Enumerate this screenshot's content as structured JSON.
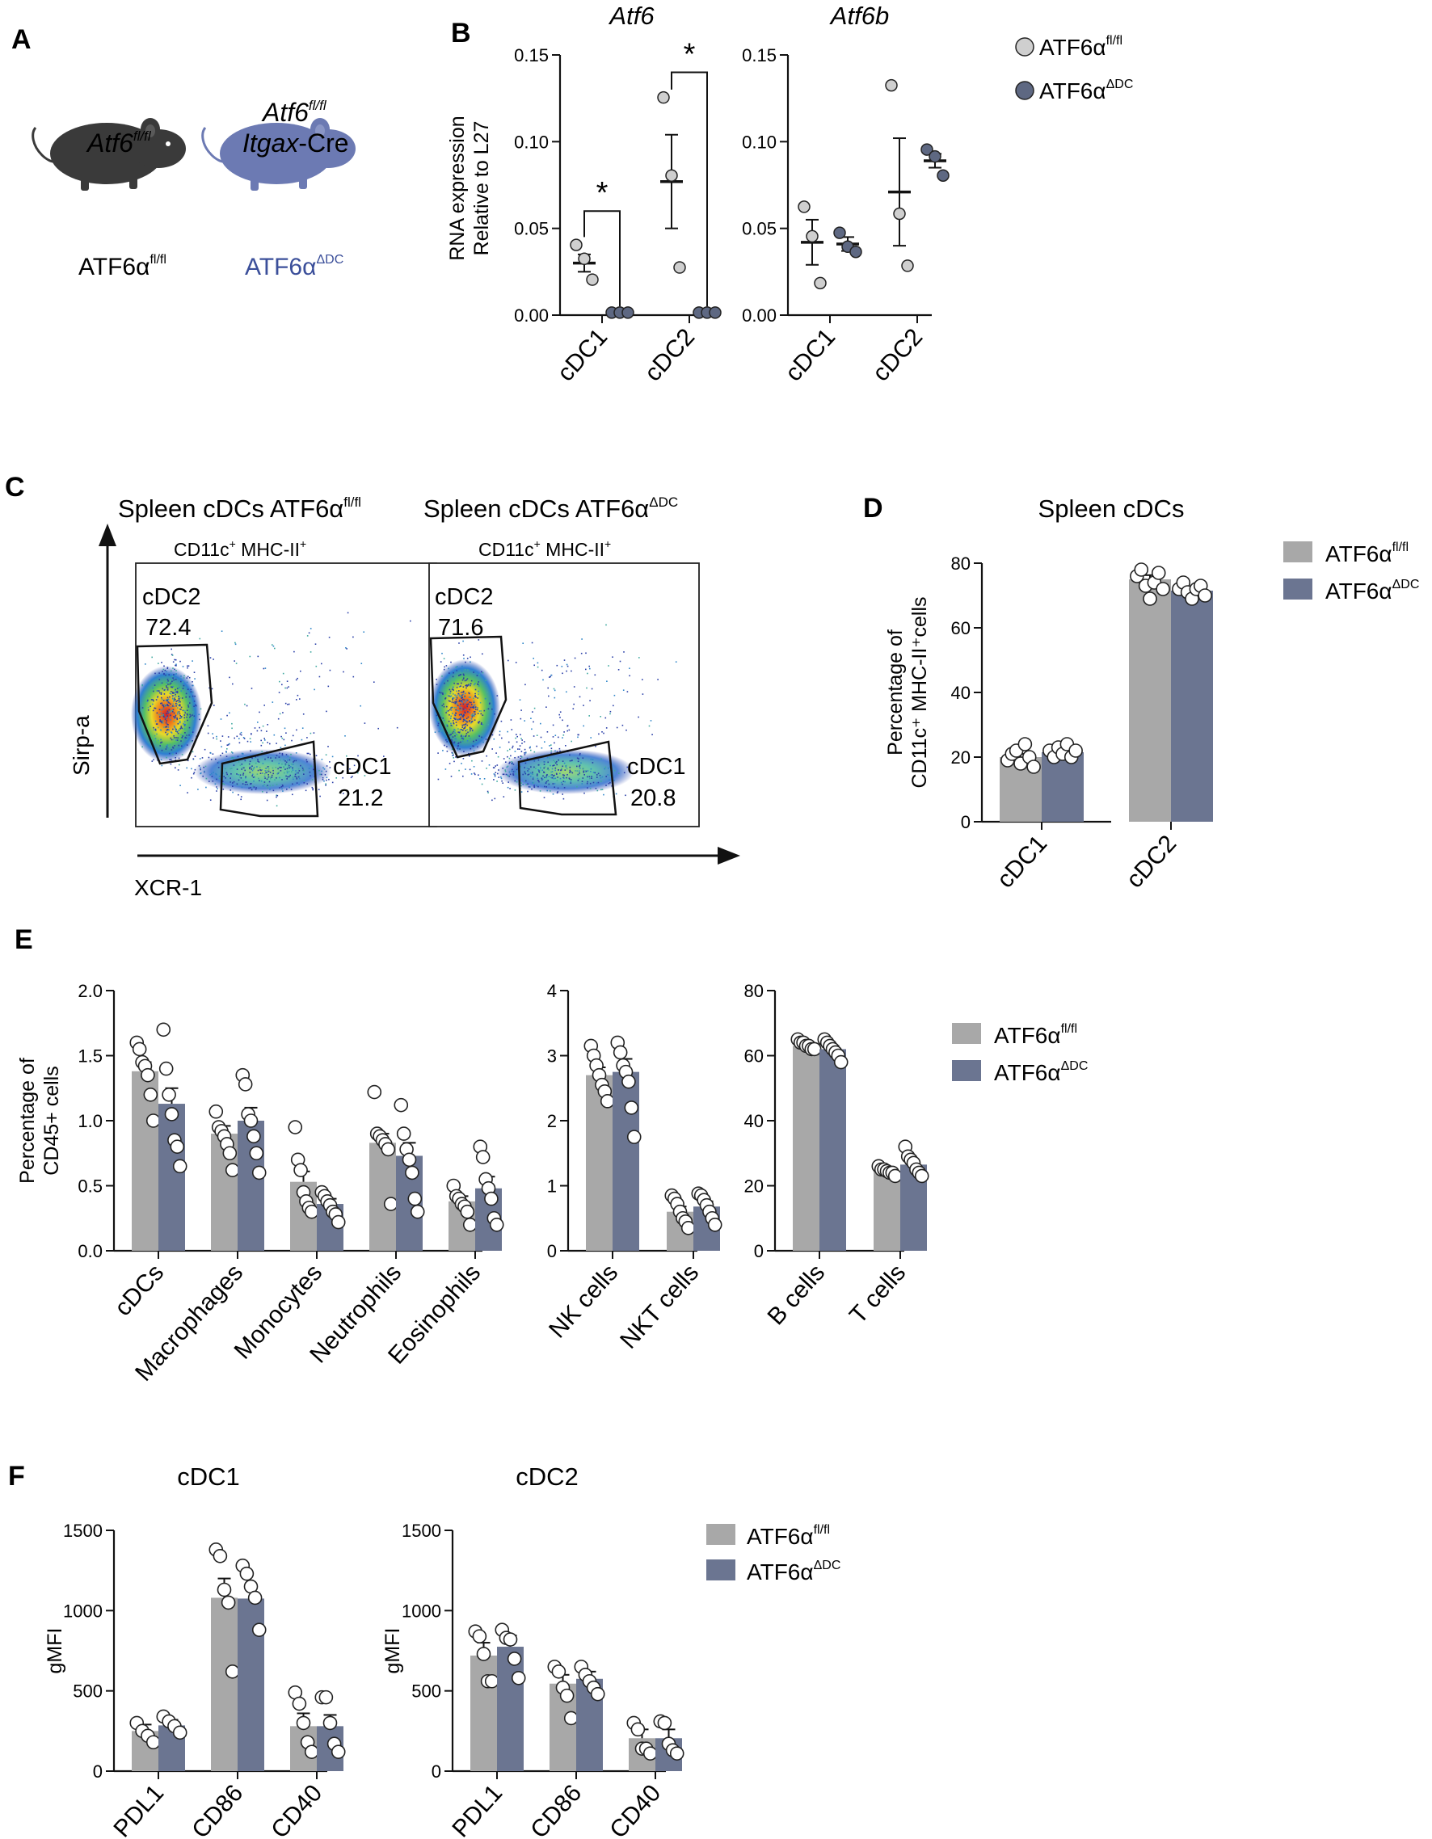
{
  "colors": {
    "fl": "#a8a8a8",
    "dc": "#6b7591",
    "fl_dot": "#cfcfcf",
    "dc_dot": "#5e6882",
    "dc_text": "#3b4f9a",
    "mouse_fl": "#3a3a3a",
    "mouse_dc": "#6c7ab3"
  },
  "icons": [
    "mouse-icon"
  ],
  "legend": {
    "fl_base": "ATF6α",
    "fl_sup": "fl/fl",
    "dc_base": "ATF6α",
    "dc_sup": "ΔDC"
  },
  "panelA": {
    "letter": "A",
    "mouse1": {
      "gene": "Atf6",
      "sup": "fl/fl",
      "label": "ATF6α",
      "label_sup": "fl/fl"
    },
    "mouse2": {
      "gene": "Atf6",
      "sup": "fl/fl",
      "line2_italic": "Itgax",
      "line2_rest": "-Cre",
      "label": "ATF6α",
      "label_sup": "ΔDC"
    }
  },
  "panelC": {
    "letter": "C",
    "yaxis": "Sirp-a",
    "xaxis": "XCR-1",
    "plots": [
      {
        "title": "Spleen cDCs ATF6α",
        "title_sup": "fl/fl",
        "subtitle": "CD11c",
        "subtitle_sup": "+",
        "subtitle_mid": " MHC-II",
        "subtitle_sup2": "+",
        "gate1_label": "cDC2",
        "gate1_value": "72.4",
        "gate2_label": "cDC1",
        "gate2_value": "21.2"
      },
      {
        "title": "Spleen cDCs ATF6α",
        "title_sup": "ΔDC",
        "subtitle": "CD11c",
        "subtitle_sup": "+",
        "subtitle_mid": " MHC-II",
        "subtitle_sup2": "+",
        "gate1_label": "cDC2",
        "gate1_value": "71.6",
        "gate2_label": "cDC1",
        "gate2_value": "20.8"
      }
    ]
  },
  "chart_data": [
    {
      "id": "B1",
      "panel_letter": "B",
      "type": "scatter",
      "title": "Atf6",
      "ylabel_line1": "RNA expression",
      "ylabel_line2": "Relative to L27",
      "categories": [
        "cDC1",
        "cDC2"
      ],
      "ylim": [
        0,
        0.15
      ],
      "yticks": [
        0,
        0.05,
        0.1,
        0.15
      ],
      "ytick_labels": [
        "0.00",
        "0.05",
        "0.10",
        "0.15"
      ],
      "series": [
        {
          "name": "ATF6α fl/fl",
          "mean": [
            0.03,
            0.077
          ],
          "err": [
            0.005,
            0.027
          ],
          "points": [
            [
              0.04,
              0.032,
              0.02
            ],
            [
              0.125,
              0.08,
              0.027
            ]
          ]
        },
        {
          "name": "ATF6α ΔDC",
          "mean": [
            0.001,
            0.001
          ],
          "err": [
            0.0,
            0.0
          ],
          "points": [
            [
              0.001,
              0.001,
              0.001
            ],
            [
              0.001,
              0.001,
              0.001
            ]
          ]
        }
      ],
      "significance": [
        "*",
        "*"
      ]
    },
    {
      "id": "B2",
      "type": "scatter",
      "title": "Atf6b",
      "categories": [
        "cDC1",
        "cDC2"
      ],
      "ylim": [
        0,
        0.15
      ],
      "yticks": [
        0,
        0.05,
        0.1,
        0.15
      ],
      "ytick_labels": [
        "0.00",
        "0.05",
        "0.10",
        "0.15"
      ],
      "series": [
        {
          "name": "ATF6α fl/fl",
          "mean": [
            0.042,
            0.071
          ],
          "err": [
            0.013,
            0.031
          ],
          "points": [
            [
              0.062,
              0.045,
              0.018
            ],
            [
              0.132,
              0.058,
              0.028
            ]
          ]
        },
        {
          "name": "ATF6α ΔDC",
          "mean": [
            0.041,
            0.089
          ],
          "err": [
            0.004,
            0.004
          ],
          "points": [
            [
              0.047,
              0.039,
              0.036
            ],
            [
              0.095,
              0.091,
              0.08
            ]
          ]
        }
      ]
    },
    {
      "id": "D",
      "panel_letter": "D",
      "type": "bar",
      "title": "Spleen cDCs",
      "ylabel_line1": "Percentage of",
      "ylabel_line2": "CD11c⁺ MHC-II⁺cells",
      "categories": [
        "cDC1",
        "cDC2"
      ],
      "ylim": [
        0,
        80
      ],
      "yticks": [
        0,
        20,
        40,
        60,
        80
      ],
      "ytick_labels": [
        "0",
        "20",
        "40",
        "60",
        "80"
      ],
      "series": [
        {
          "name": "ATF6α fl/fl",
          "values": [
            20,
            75
          ],
          "err": [
            1,
            1.3
          ],
          "points": [
            [
              19,
              21,
              22,
              18,
              24,
              20,
              17
            ],
            [
              76,
              78,
              73,
              69,
              74,
              77,
              72
            ]
          ]
        },
        {
          "name": "ATF6α ΔDC",
          "values": [
            21.5,
            71.5
          ],
          "err": [
            0.5,
            0.6
          ],
          "points": [
            [
              22,
              20,
              23,
              21,
              24,
              20,
              22
            ],
            [
              72,
              74,
              71,
              69,
              72,
              73,
              70
            ]
          ]
        }
      ]
    },
    {
      "id": "E1",
      "panel_letter": "E",
      "type": "bar",
      "ylabel_line1": "Percentage of",
      "ylabel_line2": "CD45+ cells",
      "categories": [
        "cDCs",
        "Macrophages",
        "Monocytes",
        "Neutrophils",
        "Eosinophils"
      ],
      "ylim": [
        0,
        2.0
      ],
      "yticks": [
        0,
        0.5,
        1.0,
        1.5,
        2.0
      ],
      "ytick_labels": [
        "0.0",
        "0.5",
        "1.0",
        "1.5",
        "2.0"
      ],
      "series": [
        {
          "name": "ATF6α fl/fl",
          "values": [
            1.38,
            0.9,
            0.53,
            0.83,
            0.38
          ],
          "err": [
            0.07,
            0.06,
            0.08,
            0.07,
            0.04
          ],
          "points": [
            [
              1.6,
              1.55,
              1.45,
              1.42,
              1.35,
              1.2,
              1.0
            ],
            [
              1.07,
              0.95,
              0.92,
              0.88,
              0.82,
              0.75,
              0.62
            ],
            [
              0.95,
              0.7,
              0.62,
              0.45,
              0.38,
              0.33,
              0.3
            ],
            [
              1.22,
              0.9,
              0.88,
              0.85,
              0.82,
              0.78,
              0.36
            ],
            [
              0.5,
              0.42,
              0.4,
              0.36,
              0.34,
              0.3,
              0.2
            ]
          ]
        },
        {
          "name": "ATF6α ΔDC",
          "values": [
            1.13,
            1.0,
            0.36,
            0.73,
            0.48
          ],
          "err": [
            0.12,
            0.1,
            0.04,
            0.1,
            0.09
          ],
          "points": [
            [
              1.7,
              1.4,
              1.2,
              1.05,
              0.85,
              0.8,
              0.65
            ],
            [
              1.35,
              1.28,
              1.05,
              1.0,
              0.88,
              0.75,
              0.6
            ],
            [
              0.45,
              0.42,
              0.38,
              0.35,
              0.3,
              0.28,
              0.22
            ],
            [
              1.12,
              0.9,
              0.78,
              0.7,
              0.6,
              0.4,
              0.3
            ],
            [
              0.8,
              0.72,
              0.55,
              0.48,
              0.4,
              0.25,
              0.2
            ]
          ]
        }
      ]
    },
    {
      "id": "E2",
      "type": "bar",
      "categories": [
        "NK cells",
        "NKT cells"
      ],
      "ylim": [
        0,
        4
      ],
      "yticks": [
        0,
        1,
        2,
        3,
        4
      ],
      "ytick_labels": [
        "0",
        "1",
        "2",
        "3",
        "4"
      ],
      "series": [
        {
          "name": "ATF6α fl/fl",
          "values": [
            2.7,
            0.6
          ],
          "err": [
            0.12,
            0.08
          ],
          "points": [
            [
              3.15,
              3.0,
              2.85,
              2.7,
              2.55,
              2.45,
              2.3
            ],
            [
              0.85,
              0.8,
              0.72,
              0.6,
              0.5,
              0.45,
              0.35
            ]
          ]
        },
        {
          "name": "ATF6α ΔDC",
          "values": [
            2.75,
            0.68
          ],
          "err": [
            0.2,
            0.08
          ],
          "points": [
            [
              3.2,
              3.05,
              2.85,
              2.75,
              2.6,
              2.2,
              1.75
            ],
            [
              0.88,
              0.85,
              0.78,
              0.7,
              0.6,
              0.5,
              0.4
            ]
          ]
        }
      ]
    },
    {
      "id": "E3",
      "type": "bar",
      "categories": [
        "B cells",
        "T cells"
      ],
      "ylim": [
        0,
        80
      ],
      "yticks": [
        0,
        20,
        40,
        60,
        80
      ],
      "ytick_labels": [
        "0",
        "20",
        "40",
        "60",
        "80"
      ],
      "series": [
        {
          "name": "ATF6α fl/fl",
          "values": [
            63,
            24.5
          ],
          "err": [
            0.5,
            0.4
          ],
          "points": [
            [
              65,
              64,
              64,
              63,
              63,
              62,
              62
            ],
            [
              26,
              25,
              25,
              24.5,
              24,
              24,
              23
            ]
          ]
        },
        {
          "name": "ATF6α ΔDC",
          "values": [
            62,
            26.5
          ],
          "err": [
            1.0,
            0.9
          ],
          "points": [
            [
              65,
              64,
              63,
              62,
              61,
              60,
              58
            ],
            [
              32,
              29,
              28,
              27,
              25,
              24,
              23
            ]
          ]
        }
      ]
    },
    {
      "id": "F1",
      "panel_letter": "F",
      "type": "bar",
      "title": "cDC1",
      "ylabel_line1": "gMFI",
      "categories": [
        "PDL1",
        "CD86",
        "CD40"
      ],
      "ylim": [
        0,
        1500
      ],
      "yticks": [
        0,
        500,
        1000,
        1500
      ],
      "ytick_labels": [
        "0",
        "500",
        "1000",
        "1500"
      ],
      "series": [
        {
          "name": "ATF6α fl/fl",
          "values": [
            250,
            1080,
            280
          ],
          "err": [
            40,
            120,
            80
          ],
          "points": [
            [
              300,
              250,
              220,
              180
            ],
            [
              1380,
              1340,
              1130,
              1050,
              620
            ],
            [
              490,
              420,
              300,
              180,
              120
            ]
          ]
        },
        {
          "name": "ATF6α ΔDC",
          "values": [
            285,
            1075,
            280
          ],
          "err": [
            35,
            80,
            70
          ],
          "points": [
            [
              340,
              310,
              280,
              240
            ],
            [
              1280,
              1230,
              1150,
              1080,
              880
            ],
            [
              460,
              460,
              300,
              170,
              120
            ]
          ]
        }
      ]
    },
    {
      "id": "F2",
      "type": "bar",
      "title": "cDC2",
      "ylabel_line1": "gMFI",
      "categories": [
        "PDL1",
        "CD86",
        "CD40"
      ],
      "ylim": [
        0,
        1500
      ],
      "yticks": [
        0,
        500,
        1000,
        1500
      ],
      "ytick_labels": [
        "0",
        "500",
        "1000",
        "1500"
      ],
      "series": [
        {
          "name": "ATF6α fl/fl",
          "values": [
            720,
            545,
            205
          ],
          "err": [
            80,
            55,
            55
          ],
          "points": [
            [
              870,
              840,
              730,
              560,
              560
            ],
            [
              650,
              620,
              520,
              470,
              330
            ],
            [
              300,
              260,
              140,
              140,
              110
            ]
          ]
        },
        {
          "name": "ATF6α ΔDC",
          "values": [
            775,
            575,
            205
          ],
          "err": [
            70,
            45,
            55
          ],
          "points": [
            [
              880,
              830,
              820,
              700,
              580
            ],
            [
              650,
              600,
              560,
              520,
              480
            ],
            [
              310,
              300,
              170,
              130,
              110
            ]
          ]
        }
      ]
    }
  ]
}
